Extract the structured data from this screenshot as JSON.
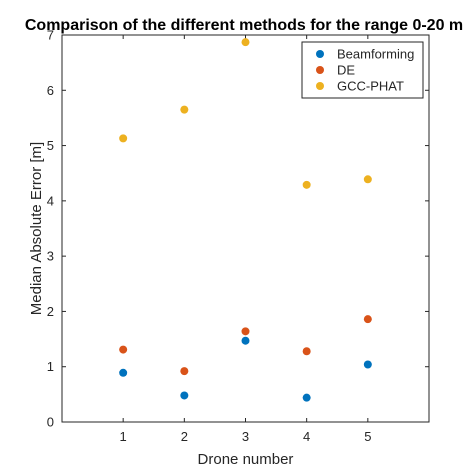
{
  "chart_data": {
    "type": "scatter",
    "title": "Comparison of the different methods for the range 0-20 m",
    "xlabel": "Drone number",
    "ylabel": "Median Absolute Error [m]",
    "xlim": [
      0,
      6
    ],
    "ylim": [
      0,
      7
    ],
    "xticks": [
      1,
      2,
      3,
      4,
      5
    ],
    "yticks": [
      0,
      1,
      2,
      3,
      4,
      5,
      6,
      7
    ],
    "x": [
      1,
      2,
      3,
      4,
      5
    ],
    "grid": false,
    "legend_location": "top-right",
    "series": [
      {
        "name": "Beamforming",
        "color": "#0072BD",
        "values": [
          0.89,
          0.48,
          1.47,
          0.44,
          1.04
        ]
      },
      {
        "name": "DE",
        "color": "#D95319",
        "values": [
          1.31,
          0.92,
          1.64,
          1.28,
          1.86
        ]
      },
      {
        "name": "GCC-PHAT",
        "color": "#EDB120",
        "values": [
          5.13,
          5.65,
          6.87,
          4.29,
          4.39
        ]
      }
    ]
  }
}
